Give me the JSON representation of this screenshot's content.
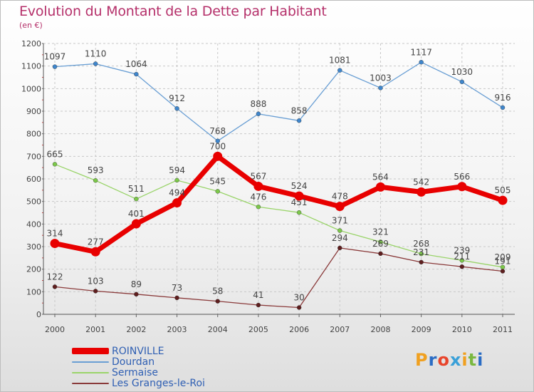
{
  "title": "Evolution du Montant de la Dette par Habitant",
  "subtitle": "(en €)",
  "logo": {
    "letters": [
      "P",
      "r",
      "o",
      "x",
      "i",
      "t",
      "i"
    ],
    "colors": [
      "#f0a020",
      "#2a6cc4",
      "#e8452c",
      "#3aa0d8",
      "#f0a020",
      "#7ab840",
      "#2a6cc4"
    ]
  },
  "chart_data": {
    "type": "line",
    "categories": [
      "2000",
      "2001",
      "2002",
      "2003",
      "2004",
      "2005",
      "2006",
      "2007",
      "2008",
      "2009",
      "2010",
      "2011"
    ],
    "y_ticks": [
      "0",
      "100",
      "200",
      "300",
      "400",
      "500",
      "600",
      "700",
      "800",
      "900",
      "1000",
      "1100",
      "1200"
    ],
    "ylim": [
      0,
      1200
    ],
    "grid": true,
    "legend_position": "bottom-left",
    "series": [
      {
        "name": "Dourdan",
        "color": "#6a9fd4",
        "point_color": "#3f86cc",
        "values": [
          1097,
          1110,
          1064,
          912,
          768,
          888,
          858,
          1081,
          1003,
          1117,
          1030,
          916
        ],
        "labels": [
          "1097",
          "1110",
          "1064",
          "912",
          "768",
          "888",
          "858",
          "1081",
          "1003",
          "1117",
          "1030",
          "916"
        ]
      },
      {
        "name": "Sermaise",
        "color": "#9ad46a",
        "point_color": "#7cc84a",
        "values": [
          665,
          593,
          511,
          594,
          545,
          476,
          451,
          371,
          321,
          268,
          239,
          209
        ],
        "labels": [
          "665",
          "593",
          "511",
          "594",
          "545",
          "476",
          "451",
          "371",
          "321",
          "268",
          "239",
          "209"
        ]
      },
      {
        "name": "Les Granges-le-Roi",
        "color": "#8a3a3a",
        "point_color": "#5e1e1e",
        "values": [
          122,
          103,
          89,
          73,
          58,
          41,
          30,
          294,
          269,
          231,
          211,
          191
        ],
        "labels": [
          "122",
          "103",
          "89",
          "73",
          "58",
          "41",
          "30",
          "294",
          "269",
          "231",
          "211",
          "191"
        ]
      },
      {
        "name": "ROINVILLE",
        "color": "#e80000",
        "point_color": "#e80000",
        "thick": true,
        "values": [
          314,
          277,
          401,
          494,
          700,
          567,
          524,
          478,
          564,
          542,
          566,
          505
        ],
        "labels": [
          "314",
          "277",
          "401",
          "494",
          "700",
          "567",
          "524",
          "478",
          "564",
          "542",
          "566",
          "505"
        ]
      }
    ],
    "legend": [
      "ROINVILLE",
      "Dourdan",
      "Sermaise",
      "Les Granges-le-Roi"
    ]
  }
}
